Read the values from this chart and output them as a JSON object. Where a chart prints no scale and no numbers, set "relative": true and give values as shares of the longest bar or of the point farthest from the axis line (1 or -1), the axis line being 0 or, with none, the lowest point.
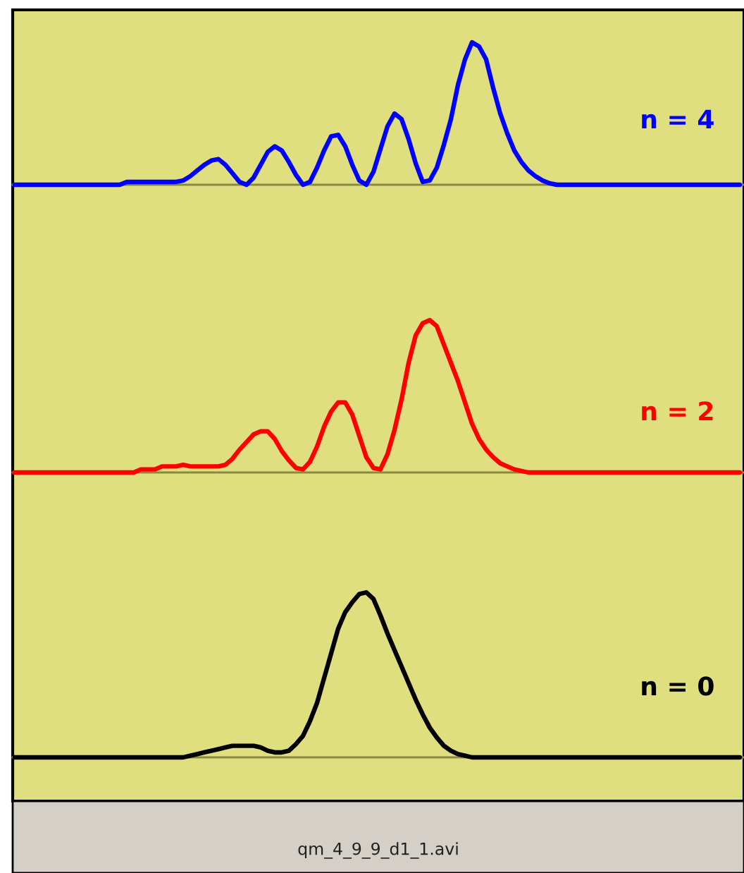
{
  "chart_data": [
    {
      "type": "line",
      "relative": true,
      "categories": [
        null,
        null,
        null,
        null,
        null,
        null,
        null,
        null,
        null,
        null,
        null,
        null,
        null,
        null,
        null,
        null,
        null,
        null,
        null,
        null,
        null,
        null,
        null,
        null,
        null,
        null,
        null,
        null,
        null,
        null,
        null,
        null,
        null,
        null,
        null,
        null,
        null,
        null,
        null,
        null,
        null,
        null,
        null,
        null,
        null,
        null,
        null,
        null,
        null,
        null,
        null,
        null,
        null,
        null,
        null,
        null,
        null,
        null,
        null,
        null,
        null,
        null,
        null,
        null,
        null,
        null,
        null,
        null,
        null,
        null,
        null,
        null,
        null,
        null,
        null,
        null,
        null,
        null,
        null,
        null,
        null,
        null,
        null,
        null,
        null,
        null,
        null,
        null,
        null,
        null,
        null,
        null,
        null,
        null,
        null,
        null,
        null,
        null,
        null,
        null,
        null,
        null,
        null,
        null
      ],
      "series": [
        {
          "name": "n = 4",
          "color": "#0000ff",
          "values": [
            0,
            0,
            0,
            0,
            0,
            0,
            0,
            0,
            0,
            0,
            0,
            0,
            0,
            0,
            0,
            0,
            0.02,
            0.02,
            0.02,
            0.02,
            0.02,
            0.02,
            0.02,
            0.02,
            0.03,
            0.06,
            0.1,
            0.14,
            0.17,
            0.18,
            0.14,
            0.08,
            0.02,
            0,
            0.05,
            0.14,
            0.23,
            0.27,
            0.24,
            0.16,
            0.07,
            0,
            0.02,
            0.12,
            0.24,
            0.34,
            0.35,
            0.27,
            0.14,
            0.03,
            0,
            0.09,
            0.25,
            0.41,
            0.5,
            0.46,
            0.32,
            0.15,
            0.02,
            0.03,
            0.12,
            0.28,
            0.46,
            0.7,
            0.88,
            1.0,
            0.97,
            0.88,
            0.68,
            0.5,
            0.36,
            0.24,
            0.16,
            0.1,
            0.06,
            0.03,
            0.01,
            0,
            0,
            0,
            0,
            0,
            0,
            0,
            0,
            0,
            0,
            0,
            0,
            0,
            0,
            0,
            0,
            0,
            0,
            0,
            0,
            0,
            0,
            0,
            0,
            0,
            0,
            0
          ]
        }
      ]
    },
    {
      "type": "line",
      "relative": true,
      "categories": [
        null,
        null,
        null,
        null,
        null,
        null,
        null,
        null,
        null,
        null,
        null,
        null,
        null,
        null,
        null,
        null,
        null,
        null,
        null,
        null,
        null,
        null,
        null,
        null,
        null,
        null,
        null,
        null,
        null,
        null,
        null,
        null,
        null,
        null,
        null,
        null,
        null,
        null,
        null,
        null,
        null,
        null,
        null,
        null,
        null,
        null,
        null,
        null,
        null,
        null,
        null,
        null,
        null,
        null,
        null,
        null,
        null,
        null,
        null,
        null,
        null,
        null,
        null,
        null,
        null,
        null,
        null,
        null,
        null,
        null,
        null,
        null,
        null,
        null,
        null,
        null,
        null,
        null,
        null,
        null,
        null,
        null,
        null,
        null,
        null,
        null,
        null,
        null,
        null,
        null,
        null,
        null,
        null,
        null,
        null,
        null,
        null,
        null,
        null,
        null,
        null,
        null,
        null,
        null
      ],
      "series": [
        {
          "name": "n = 2",
          "color": "#ff0000",
          "values": [
            0,
            0,
            0,
            0,
            0,
            0,
            0,
            0,
            0,
            0,
            0,
            0,
            0,
            0,
            0,
            0,
            0,
            0,
            0.02,
            0.02,
            0.02,
            0.04,
            0.04,
            0.04,
            0.05,
            0.04,
            0.04,
            0.04,
            0.04,
            0.04,
            0.05,
            0.09,
            0.15,
            0.2,
            0.25,
            0.27,
            0.27,
            0.22,
            0.14,
            0.08,
            0.03,
            0.02,
            0.07,
            0.17,
            0.3,
            0.4,
            0.46,
            0.46,
            0.38,
            0.24,
            0.1,
            0.03,
            0.02,
            0.12,
            0.28,
            0.48,
            0.72,
            0.9,
            0.98,
            1.0,
            0.96,
            0.84,
            0.72,
            0.6,
            0.46,
            0.32,
            0.22,
            0.15,
            0.1,
            0.06,
            0.04,
            0.02,
            0.01,
            0,
            0,
            0,
            0,
            0,
            0,
            0,
            0,
            0,
            0,
            0,
            0,
            0,
            0,
            0,
            0,
            0,
            0,
            0,
            0,
            0,
            0,
            0,
            0,
            0,
            0,
            0,
            0,
            0,
            0,
            0
          ]
        }
      ]
    },
    {
      "type": "line",
      "relative": true,
      "categories": [
        null,
        null,
        null,
        null,
        null,
        null,
        null,
        null,
        null,
        null,
        null,
        null,
        null,
        null,
        null,
        null,
        null,
        null,
        null,
        null,
        null,
        null,
        null,
        null,
        null,
        null,
        null,
        null,
        null,
        null,
        null,
        null,
        null,
        null,
        null,
        null,
        null,
        null,
        null,
        null,
        null,
        null,
        null,
        null,
        null,
        null,
        null,
        null,
        null,
        null,
        null,
        null,
        null,
        null,
        null,
        null,
        null,
        null,
        null,
        null,
        null,
        null,
        null,
        null,
        null,
        null,
        null,
        null,
        null,
        null,
        null,
        null,
        null,
        null,
        null,
        null,
        null,
        null,
        null,
        null,
        null,
        null,
        null,
        null,
        null,
        null,
        null,
        null,
        null,
        null,
        null,
        null,
        null,
        null,
        null,
        null,
        null,
        null,
        null,
        null,
        null,
        null,
        null,
        null
      ],
      "series": [
        {
          "name": "n = 0",
          "color": "#000000",
          "values": [
            0,
            0,
            0,
            0,
            0,
            0,
            0,
            0,
            0,
            0,
            0,
            0,
            0,
            0,
            0,
            0,
            0,
            0,
            0,
            0,
            0,
            0,
            0,
            0,
            0,
            0.01,
            0.02,
            0.03,
            0.04,
            0.05,
            0.06,
            0.07,
            0.07,
            0.07,
            0.07,
            0.06,
            0.04,
            0.03,
            0.03,
            0.04,
            0.08,
            0.13,
            0.22,
            0.33,
            0.48,
            0.63,
            0.78,
            0.88,
            0.94,
            0.99,
            1.0,
            0.96,
            0.86,
            0.75,
            0.65,
            0.55,
            0.45,
            0.35,
            0.26,
            0.18,
            0.12,
            0.07,
            0.04,
            0.02,
            0.01,
            0,
            0,
            0,
            0,
            0,
            0,
            0,
            0,
            0,
            0,
            0,
            0,
            0,
            0,
            0,
            0,
            0,
            0,
            0,
            0,
            0,
            0,
            0,
            0,
            0,
            0,
            0,
            0,
            0,
            0,
            0,
            0,
            0,
            0,
            0,
            0,
            0,
            0,
            0
          ]
        }
      ],
      "annotations": [
        "qm_4_9_9_d1_1.avi"
      ]
    }
  ]
}
